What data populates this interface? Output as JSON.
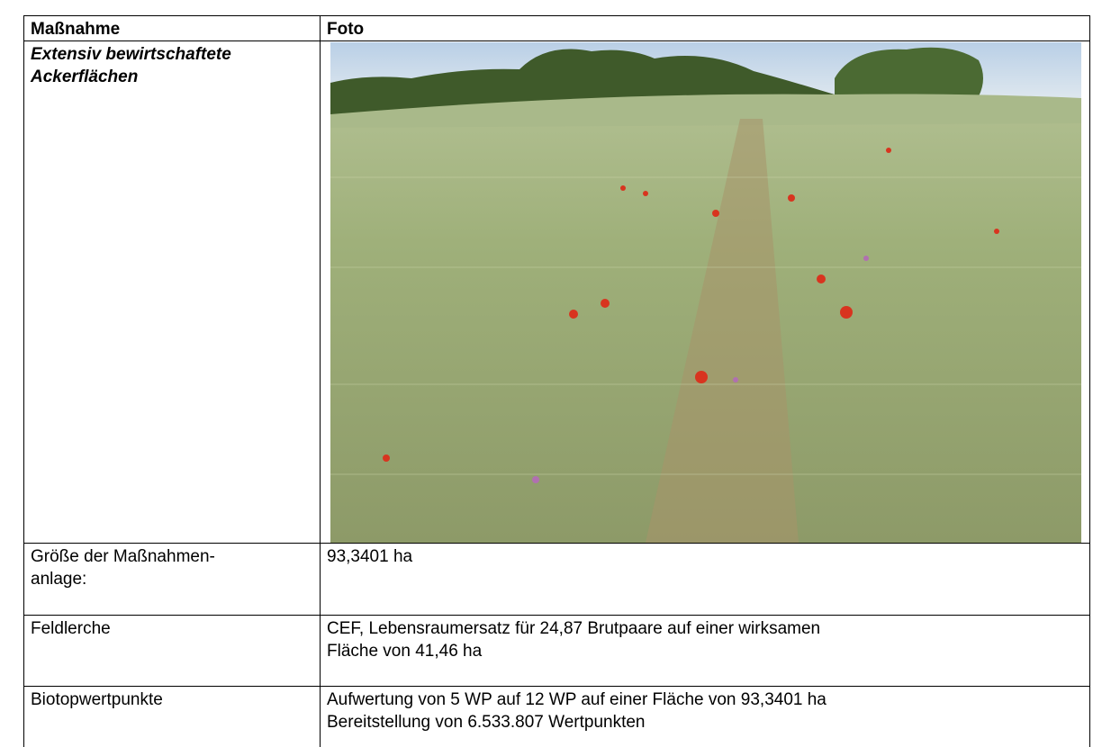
{
  "table": {
    "header": [
      "Maßnahme",
      "Foto"
    ],
    "rows": [
      {
        "label": [
          "Extensiv bewirtschaftete",
          "Ackerflächen"
        ]
      },
      {
        "label": [
          "Größe der Maßnahmen-",
          "anlage:"
        ],
        "content": [
          "93,3401 ha"
        ]
      },
      {
        "label": [
          "Feldlerche"
        ],
        "content": [
          "CEF, Lebensraumersatz für 24,87 Brutpaare auf einer wirksamen",
          "Fläche von 41,46 ha"
        ]
      },
      {
        "label": [
          "Biotopwertpunkte"
        ],
        "content": [
          "Aufwertung von 5 WP auf 12 WP auf einer Fläche von 93,3401 ha",
          "Bereitstellung von 6.533.807 Wertpunkten"
        ]
      }
    ]
  }
}
